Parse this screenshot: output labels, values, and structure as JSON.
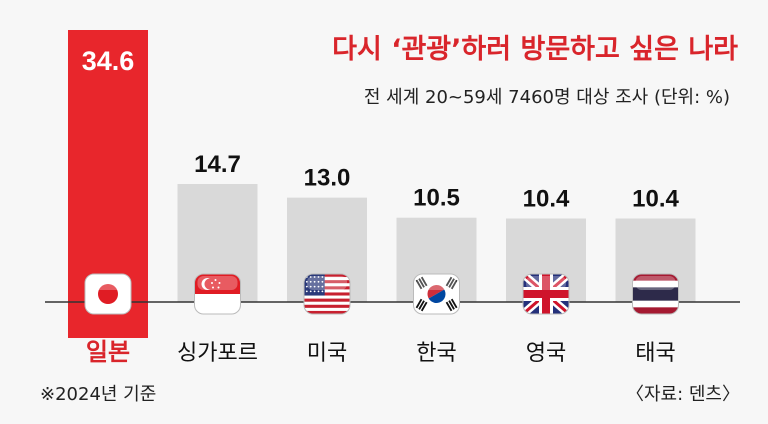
{
  "chart_data": {
    "type": "bar",
    "title": "다시 ‘관광’하러 방문하고 싶은 나라",
    "subtitle": "전 세계 20~59세 7460명 대상 조사  (단위: %)",
    "categories": [
      "일본",
      "싱가포르",
      "미국",
      "한국",
      "영국",
      "태국"
    ],
    "values": [
      34.6,
      14.7,
      13.0,
      10.5,
      10.4,
      10.4
    ],
    "value_labels": [
      "34.6",
      "14.7",
      "13.0",
      "10.5",
      "10.4",
      "10.4"
    ],
    "flags": [
      "japan-flag-icon",
      "singapore-flag-icon",
      "usa-flag-icon",
      "korea-flag-icon",
      "uk-flag-icon",
      "thailand-flag-icon"
    ],
    "highlight_index": 0,
    "colors": {
      "highlight": "#e8262c",
      "highlight_text": "#d9252b",
      "bar": "#d9d9d9",
      "background": "#f7f7f7"
    },
    "grid": false
  },
  "footer": {
    "note": "※2024년 기준",
    "source": "〈자료: 덴츠〉"
  }
}
